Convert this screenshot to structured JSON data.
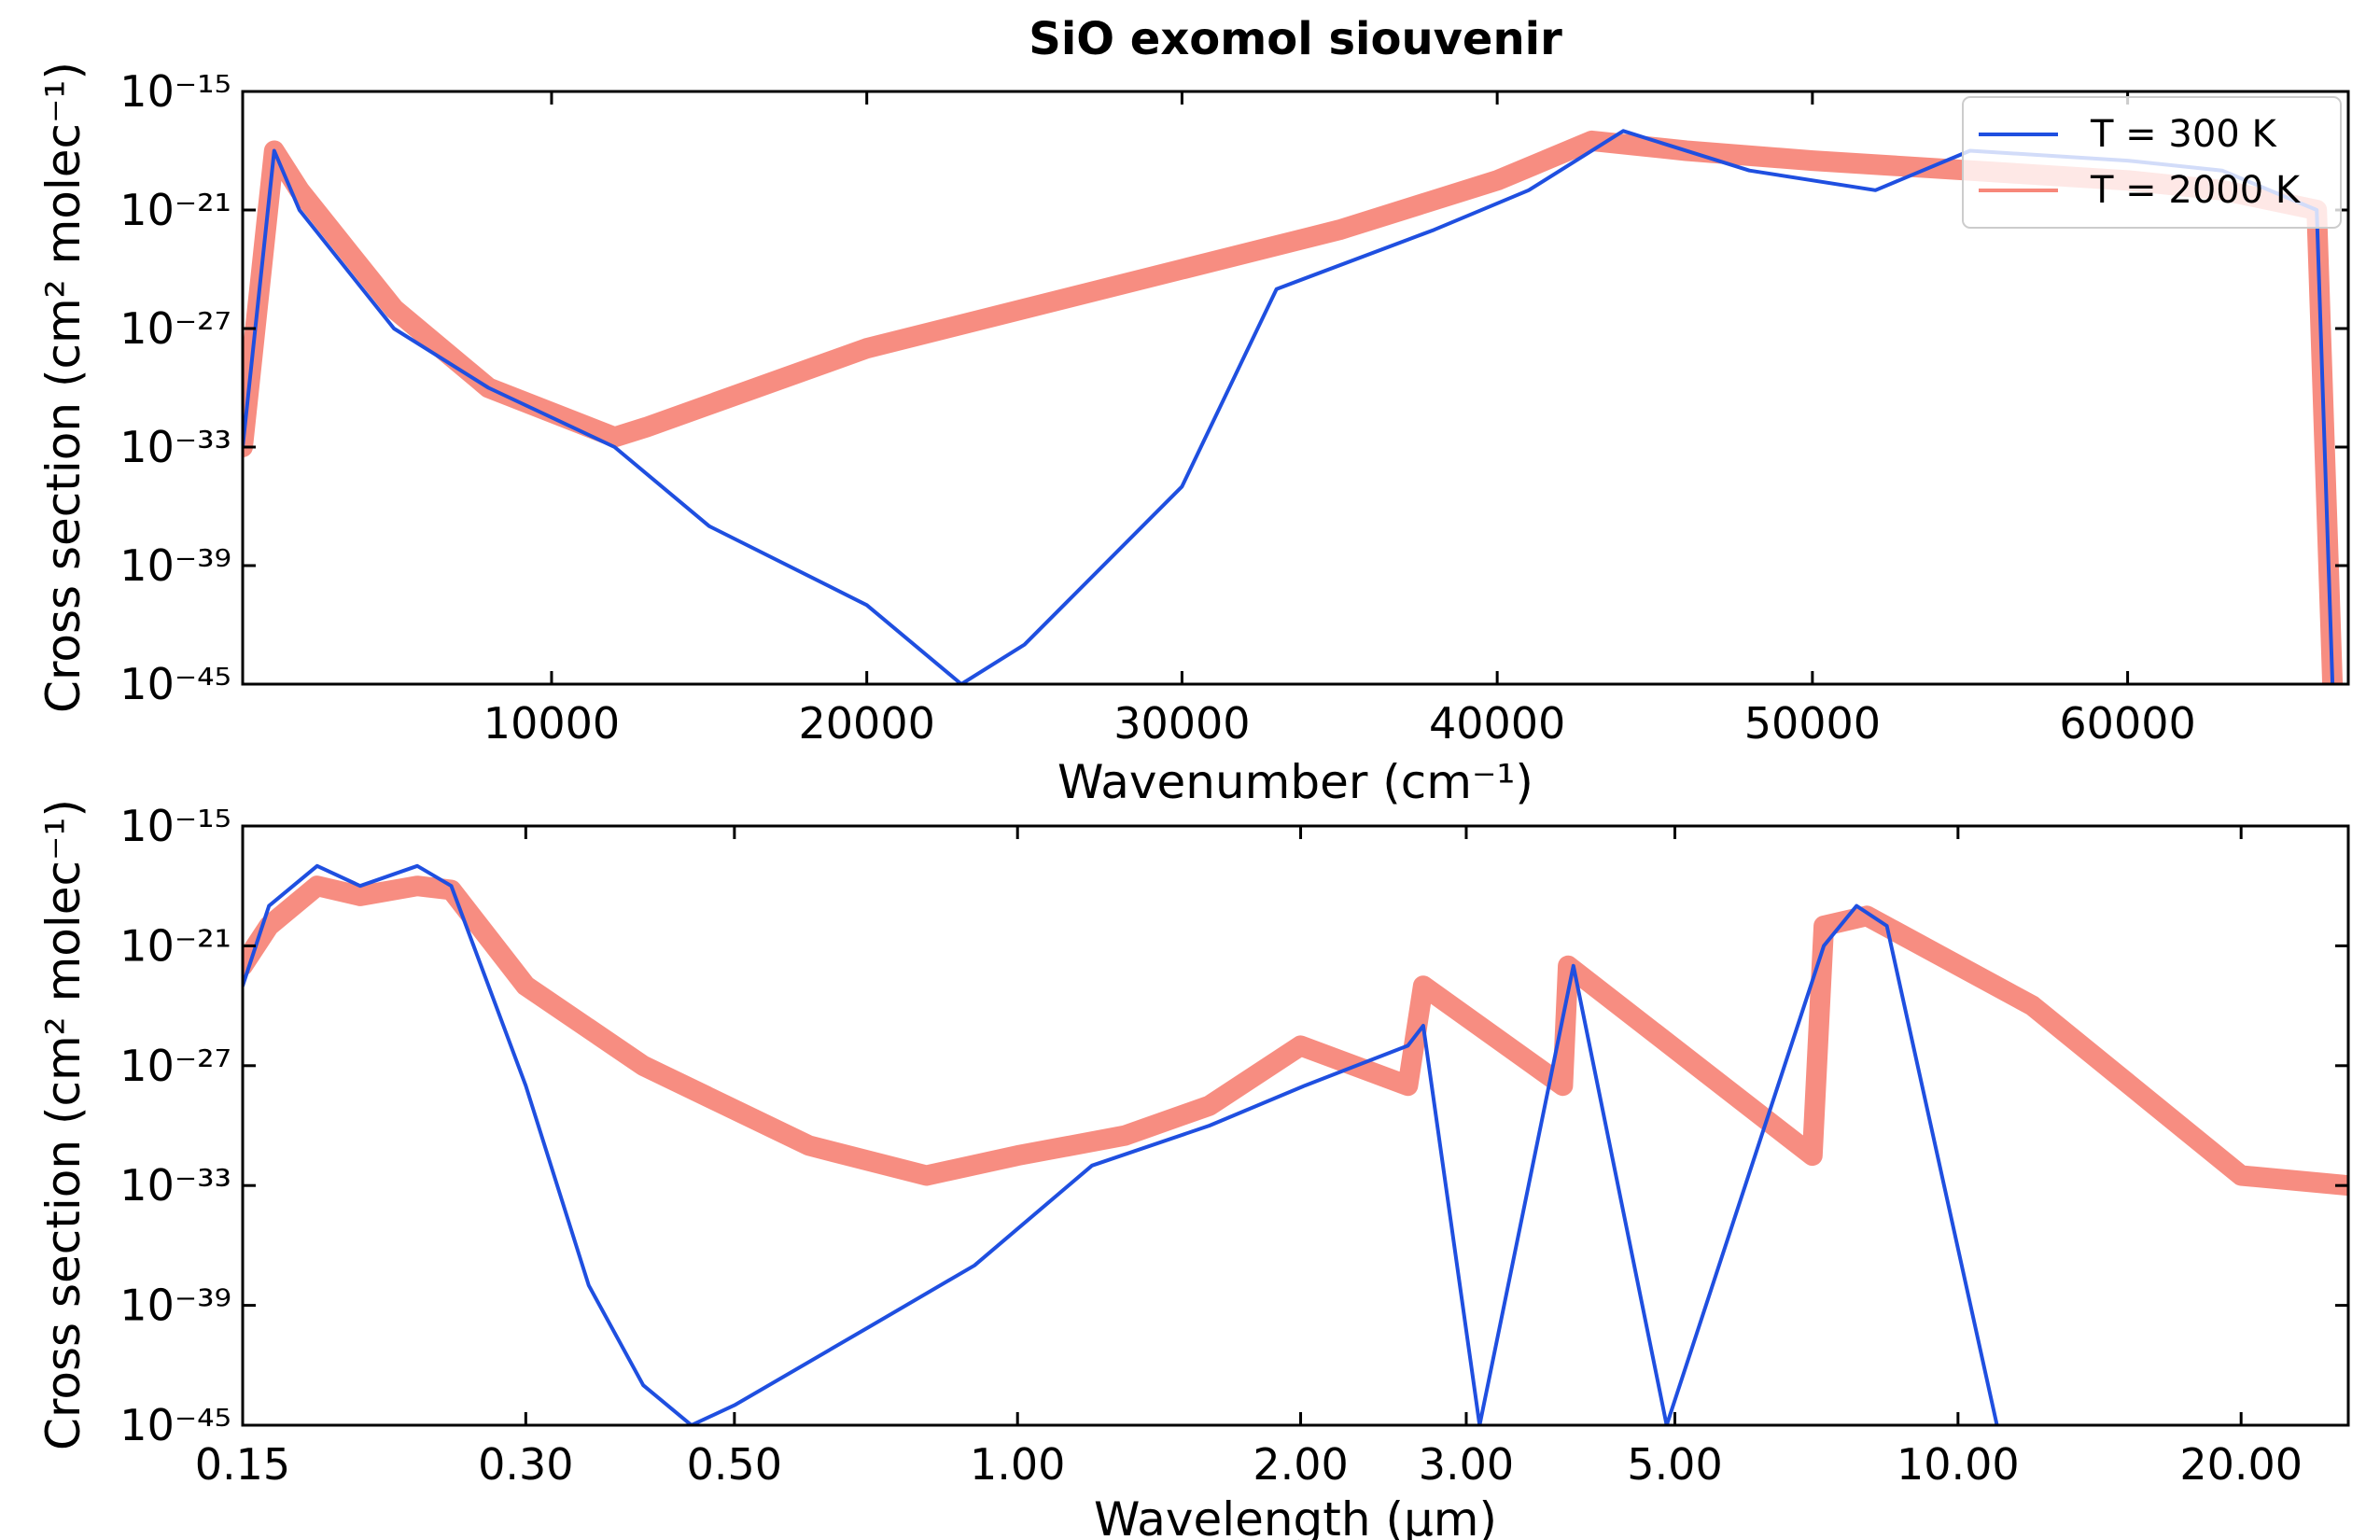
{
  "chart_data": [
    {
      "type": "line",
      "title": "SiO exomol siouvenir",
      "xlabel": "Wavenumber (cm⁻¹)",
      "ylabel": "Cross section (cm² molec⁻¹)",
      "xscale": "linear",
      "yscale": "log",
      "xlim": [
        200,
        67000
      ],
      "ylim_log10": [
        -45,
        -15
      ],
      "xticks": [
        10000,
        20000,
        30000,
        40000,
        50000,
        60000
      ],
      "xtick_labels": [
        "10000",
        "20000",
        "30000",
        "40000",
        "50000",
        "60000"
      ],
      "yticks_log10": [
        -15,
        -21,
        -27,
        -33,
        -39,
        -45
      ],
      "ytick_labels": [
        "10⁻¹⁵",
        "10⁻²¹",
        "10⁻²⁷",
        "10⁻³³",
        "10⁻³⁹",
        "10⁻⁴⁵"
      ],
      "legend_position": "top-right",
      "series": [
        {
          "name": "T = 300 K",
          "color": "#1f4fe0",
          "x": [
            200,
            1200,
            2000,
            3500,
            5000,
            8000,
            12000,
            15000,
            20000,
            23000,
            25000,
            30000,
            33000,
            38000,
            41000,
            44000,
            48000,
            52000,
            55000,
            60000,
            63000,
            66000,
            66500
          ],
          "y_log10": [
            -33,
            -18,
            -21,
            -24,
            -27,
            -30,
            -33,
            -37,
            -41,
            -45,
            -43,
            -35,
            -25,
            -22,
            -20,
            -17,
            -19,
            -20,
            -18,
            -18.5,
            -19,
            -21,
            -45
          ]
        },
        {
          "name": "T = 2000 K",
          "color": "#f7877a",
          "x": [
            200,
            1200,
            2000,
            3500,
            5000,
            8000,
            12000,
            13000,
            20000,
            30000,
            35000,
            40000,
            43000,
            46000,
            50000,
            55000,
            60000,
            63000,
            66000,
            66500
          ],
          "y_log10": [
            -33,
            -18,
            -20,
            -23,
            -26,
            -30,
            -32.5,
            -32,
            -28,
            -24,
            -22,
            -19.5,
            -17.5,
            -18,
            -18.5,
            -19,
            -19.5,
            -20,
            -21,
            -45
          ]
        }
      ]
    },
    {
      "type": "line",
      "title": "",
      "xlabel": "Wavelength (µm)",
      "ylabel": "Cross section (cm² molec⁻¹)",
      "xscale": "log",
      "yscale": "log",
      "xlim": [
        0.15,
        26
      ],
      "ylim_log10": [
        -45,
        -15
      ],
      "xticks": [
        0.15,
        0.3,
        0.5,
        1.0,
        2.0,
        3.0,
        5.0,
        10.0,
        20.0
      ],
      "xtick_labels": [
        "0.15",
        "0.30",
        "0.50",
        "1.00",
        "2.00",
        "3.00",
        "5.00",
        "10.00",
        "20.00"
      ],
      "yticks_log10": [
        -15,
        -21,
        -27,
        -33,
        -39,
        -45
      ],
      "ytick_labels": [
        "10⁻¹⁵",
        "10⁻²¹",
        "10⁻²⁷",
        "10⁻³³",
        "10⁻³⁹",
        "10⁻⁴⁵"
      ],
      "series": [
        {
          "name": "T = 300 K",
          "color": "#1f4fe0",
          "x": [
            0.15,
            0.16,
            0.18,
            0.2,
            0.23,
            0.25,
            0.3,
            0.35,
            0.4,
            0.45,
            0.5,
            0.7,
            0.9,
            1.2,
            1.6,
            2.02,
            2.6,
            2.7,
            3.1,
            3.9,
            4.9,
            7.2,
            7.8,
            8.4,
            11.0
          ],
          "y_log10": [
            -23,
            -19,
            -17,
            -18,
            -17,
            -18,
            -28,
            -38,
            -43,
            -45,
            -44,
            -40,
            -37,
            -32,
            -30,
            -28,
            -26,
            -25,
            -45,
            -22,
            -45,
            -21,
            -19,
            -20,
            -45
          ]
        },
        {
          "name": "T = 2000 K",
          "color": "#f7877a",
          "x": [
            0.15,
            0.16,
            0.18,
            0.2,
            0.23,
            0.25,
            0.3,
            0.4,
            0.6,
            0.8,
            1.0,
            1.3,
            1.6,
            2.0,
            2.6,
            2.7,
            3.8,
            3.85,
            7.0,
            7.2,
            8.0,
            12.0,
            20.0,
            26.0
          ],
          "y_log10": [
            -22,
            -20,
            -18,
            -18.5,
            -18,
            -18.2,
            -23,
            -27,
            -31,
            -32.5,
            -31.5,
            -30.5,
            -29,
            -26,
            -28,
            -23,
            -28,
            -22,
            -31.5,
            -20,
            -19.5,
            -24,
            -32.5,
            -33
          ]
        }
      ]
    }
  ]
}
